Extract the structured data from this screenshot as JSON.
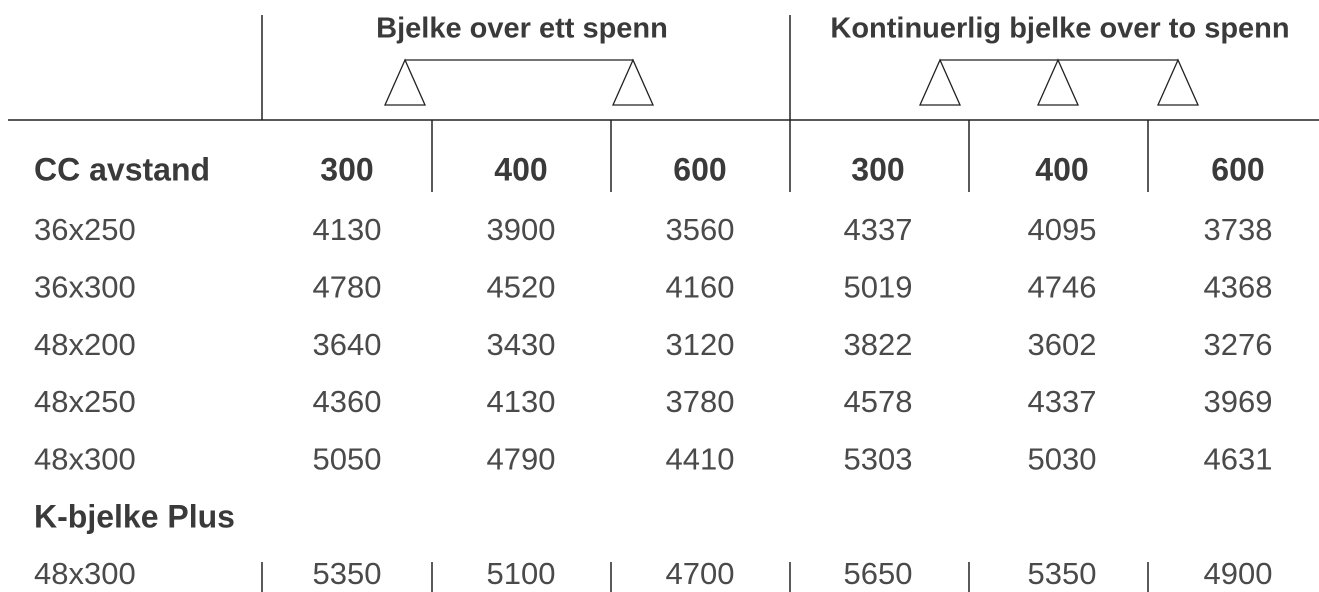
{
  "groups": [
    "Bjelke over ett spenn",
    "Kontinuerlig bjelke over to spenn"
  ],
  "header": [
    "CC avstand",
    "300",
    "400",
    "600",
    "300",
    "400",
    "600"
  ],
  "rows": [
    [
      "36x250",
      "4130",
      "3900",
      "3560",
      "4337",
      "4095",
      "3738"
    ],
    [
      "36x300",
      "4780",
      "4520",
      "4160",
      "5019",
      "4746",
      "4368"
    ],
    [
      "48x200",
      "3640",
      "3430",
      "3120",
      "3822",
      "3602",
      "3276"
    ],
    [
      "48x250",
      "4360",
      "4130",
      "3780",
      "4578",
      "4337",
      "3969"
    ],
    [
      "48x300",
      "5050",
      "4790",
      "4410",
      "5303",
      "5030",
      "4631"
    ]
  ],
  "section": "K-bjelke Plus",
  "section_rows": [
    [
      "48x300",
      "5350",
      "5100",
      "4700",
      "5650",
      "5350",
      "4900"
    ]
  ]
}
